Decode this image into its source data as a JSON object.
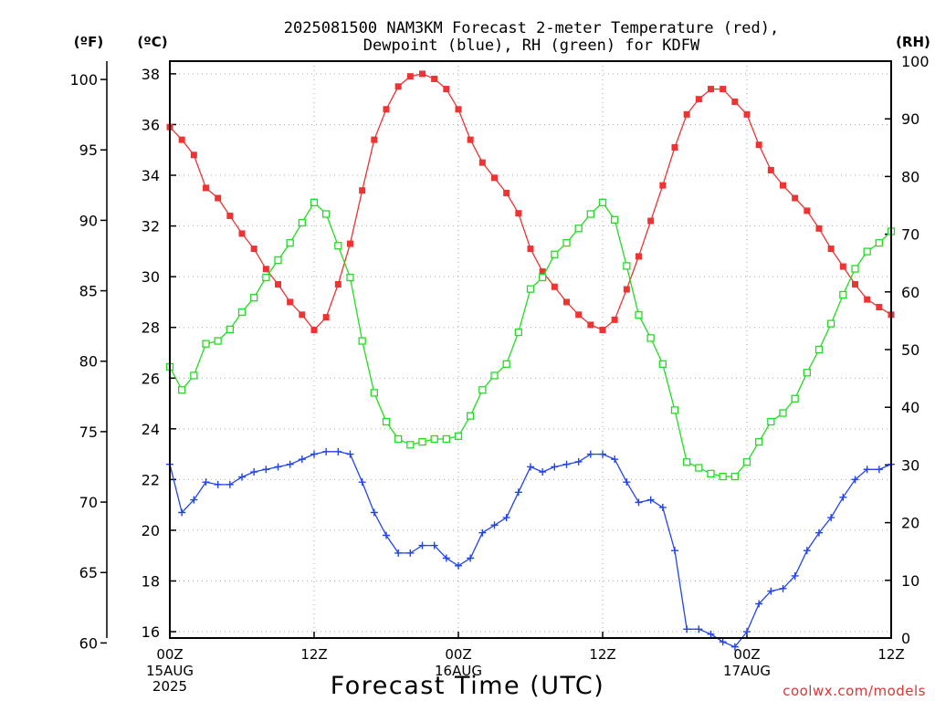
{
  "title_line1": "2025081500 NAM3KM Forecast 2-meter Temperature (red),",
  "title_line2": "Dewpoint (blue), RH (green) for KDFW",
  "unit_f": "(ºF)",
  "unit_c": "(ºC)",
  "unit_rh": "(RH)",
  "xlabel": "Forecast Time (UTC)",
  "credit": "coolwx.com/models",
  "colors": {
    "temperature": "#ee3333",
    "dewpoint": "#2244ee",
    "rh": "#22dd22",
    "credit": "#dd3333",
    "grid": "#aaaaaa"
  },
  "chart_data": {
    "type": "line",
    "x_unit": "forecast hour",
    "xlim": [
      0,
      60
    ],
    "x_ticks": [
      {
        "hour": 0,
        "line1": "00Z",
        "line2": "15AUG",
        "line3": "2025"
      },
      {
        "hour": 12,
        "line1": "12Z",
        "line2": "",
        "line3": ""
      },
      {
        "hour": 24,
        "line1": "00Z",
        "line2": "16AUG",
        "line3": ""
      },
      {
        "hour": 36,
        "line1": "12Z",
        "line2": "",
        "line3": ""
      },
      {
        "hour": 48,
        "line1": "00Z",
        "line2": "17AUG",
        "line3": ""
      },
      {
        "hour": 60,
        "line1": "12Z",
        "line2": "",
        "line3": ""
      }
    ],
    "y_celsius": {
      "ylim": [
        15.75,
        38.5
      ],
      "ticks": [
        16,
        18,
        20,
        22,
        24,
        26,
        28,
        30,
        32,
        34,
        36,
        38
      ]
    },
    "y_fahrenheit": {
      "ticks": [
        60,
        65,
        70,
        75,
        80,
        85,
        90,
        95,
        100
      ]
    },
    "y_rh": {
      "ylim": [
        0,
        100
      ],
      "ticks": [
        0,
        10,
        20,
        30,
        40,
        50,
        60,
        70,
        80,
        90,
        100
      ]
    },
    "series": [
      {
        "name": "Temperature",
        "axis": "celsius",
        "marker": "filled-square",
        "x": [
          0,
          1,
          2,
          3,
          4,
          5,
          6,
          7,
          8,
          9,
          10,
          11,
          12,
          13,
          14,
          15,
          16,
          17,
          18,
          19,
          20,
          21,
          22,
          23,
          24,
          25,
          26,
          27,
          28,
          29,
          30,
          31,
          32,
          33,
          34,
          35,
          36,
          37,
          38,
          39,
          40,
          41,
          42,
          43,
          44,
          45,
          46,
          47,
          48,
          49,
          50,
          51,
          52,
          53,
          54,
          55,
          56,
          57,
          58,
          59,
          60
        ],
        "values": [
          35.9,
          35.4,
          34.8,
          33.5,
          33.1,
          32.4,
          31.7,
          31.1,
          30.3,
          29.7,
          29.0,
          28.5,
          27.9,
          28.4,
          29.7,
          31.3,
          33.4,
          35.4,
          36.6,
          37.5,
          37.9,
          38.0,
          37.8,
          37.4,
          36.6,
          35.4,
          34.5,
          33.9,
          33.3,
          32.5,
          31.1,
          30.2,
          29.6,
          29.0,
          28.5,
          28.1,
          27.9,
          28.3,
          29.5,
          30.8,
          32.2,
          33.6,
          35.1,
          36.4,
          37.0,
          37.4,
          37.4,
          36.9,
          36.4,
          35.2,
          34.2,
          33.6,
          33.1,
          32.6,
          31.9,
          31.1,
          30.4,
          29.7,
          29.1,
          28.8,
          28.5
        ]
      },
      {
        "name": "Dewpoint",
        "axis": "celsius",
        "marker": "plus",
        "x": [
          0,
          1,
          2,
          3,
          4,
          5,
          6,
          7,
          8,
          9,
          10,
          11,
          12,
          13,
          14,
          15,
          16,
          17,
          18,
          19,
          20,
          21,
          22,
          23,
          24,
          25,
          26,
          27,
          28,
          29,
          30,
          31,
          32,
          33,
          34,
          35,
          36,
          37,
          38,
          39,
          40,
          41,
          42,
          43,
          44,
          45,
          46,
          47,
          48,
          49,
          50,
          51,
          52,
          53,
          54,
          55,
          56,
          57,
          58,
          59,
          60
        ],
        "values": [
          22.6,
          20.7,
          21.2,
          21.9,
          21.8,
          21.8,
          22.1,
          22.3,
          22.4,
          22.5,
          22.6,
          22.8,
          23.0,
          23.1,
          23.1,
          23.0,
          21.9,
          20.7,
          19.8,
          19.1,
          19.1,
          19.4,
          19.4,
          18.9,
          18.6,
          18.9,
          19.9,
          20.2,
          20.5,
          21.5,
          22.5,
          22.3,
          22.5,
          22.6,
          22.7,
          23.0,
          23.0,
          22.8,
          21.9,
          21.1,
          21.2,
          20.9,
          19.2,
          16.1,
          16.1,
          15.9,
          15.6,
          15.4,
          16.0,
          17.1,
          17.6,
          17.7,
          18.2,
          19.2,
          19.9,
          20.5,
          21.3,
          22.0,
          22.4,
          22.4,
          22.6
        ]
      },
      {
        "name": "RH",
        "axis": "rh",
        "marker": "open-square",
        "x": [
          0,
          1,
          2,
          3,
          4,
          5,
          6,
          7,
          8,
          9,
          10,
          11,
          12,
          13,
          14,
          15,
          16,
          17,
          18,
          19,
          20,
          21,
          22,
          23,
          24,
          25,
          26,
          27,
          28,
          29,
          30,
          31,
          32,
          33,
          34,
          35,
          36,
          37,
          38,
          39,
          40,
          41,
          42,
          43,
          44,
          45,
          46,
          47,
          48,
          49,
          50,
          51,
          52,
          53,
          54,
          55,
          56,
          57,
          58,
          59,
          60
        ],
        "values": [
          47,
          43,
          45.5,
          51,
          51.5,
          53.5,
          56.5,
          59,
          62.5,
          65.5,
          68.5,
          72,
          75.5,
          73.5,
          68,
          62.5,
          51.5,
          42.5,
          37.5,
          34.5,
          33.5,
          34,
          34.5,
          34.5,
          35,
          38.5,
          43,
          45.5,
          47.5,
          53,
          60.5,
          62.5,
          66.5,
          68.5,
          71,
          73.5,
          75.5,
          72.5,
          64.5,
          56,
          52,
          47.5,
          39.5,
          30.5,
          29.5,
          28.5,
          28,
          28,
          30.5,
          34,
          37.5,
          39,
          41.5,
          46,
          50,
          54.5,
          59.5,
          64,
          67,
          68.5,
          70.5
        ]
      }
    ]
  }
}
